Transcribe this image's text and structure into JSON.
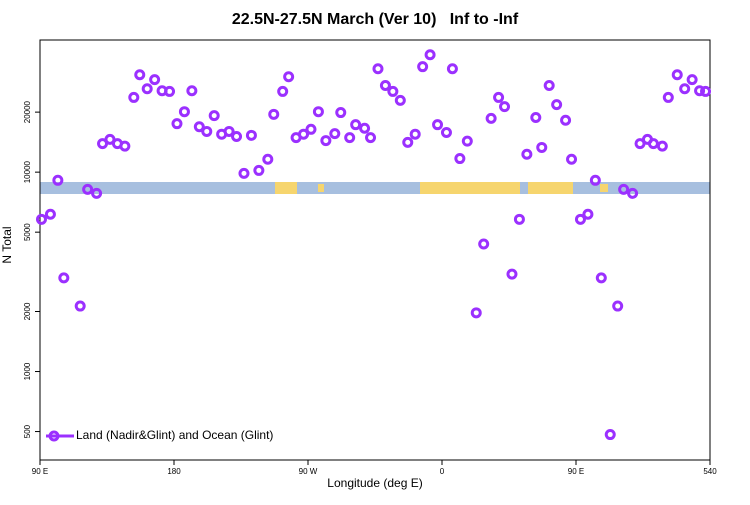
{
  "chart_data": {
    "type": "scatter",
    "title": "22.5N-27.5N March (Ver 10)   Inf to -Inf",
    "xlabel": "Longitude (deg E)",
    "ylabel": "N Total",
    "xlim": [
      90,
      540
    ],
    "xticks": [
      {
        "value": 90,
        "label": "90 E"
      },
      180,
      {
        "value": 270,
        "label": "90 W"
      },
      {
        "value": 360,
        "label": "0"
      },
      {
        "value": 450,
        "label": "90 E"
      },
      540
    ],
    "ylim": [
      360,
      46000
    ],
    "yticks": [
      500,
      1000,
      2000,
      5000,
      10000,
      20000
    ],
    "yscale": "log",
    "legend": "lower left",
    "series": [
      {
        "name": "Land (Nadir&Glint) and Ocean (Glint)",
        "color": "#9b30ff",
        "x": [
          91,
          97,
          102,
          106,
          117,
          122,
          128,
          132,
          137,
          142,
          147,
          153,
          157,
          162,
          167,
          172,
          177,
          182,
          187,
          192,
          197,
          202,
          207,
          212,
          217,
          222,
          227,
          232,
          237,
          243,
          247,
          253,
          257,
          262,
          267,
          272,
          277,
          282,
          288,
          292,
          298,
          302,
          308,
          312,
          317,
          322,
          327,
          332,
          337,
          342,
          347,
          352,
          357,
          363,
          367,
          372,
          377,
          383,
          388,
          393,
          398,
          402,
          407,
          412,
          417,
          423,
          427,
          432,
          437,
          443,
          447,
          453,
          458,
          463,
          467,
          473,
          478,
          482,
          488,
          493,
          498,
          502,
          508,
          512,
          518,
          523,
          528,
          533,
          537
        ],
        "values": [
          5800,
          6150,
          9100,
          2950,
          2130,
          8200,
          7830,
          13900,
          14600,
          13900,
          13500,
          23700,
          30800,
          26200,
          29100,
          25600,
          25400,
          17500,
          20100,
          25600,
          16900,
          16000,
          19200,
          15500,
          16000,
          15100,
          9860,
          15300,
          10200,
          11600,
          19500,
          25400,
          30100,
          14900,
          15500,
          16400,
          20100,
          14400,
          15600,
          19900,
          14900,
          17300,
          16600,
          14900,
          33000,
          27200,
          25400,
          22900,
          14100,
          15500,
          33800,
          38800,
          17300,
          15800,
          33000,
          11700,
          14300,
          1970,
          4360,
          18600,
          23700,
          21300,
          3080,
          5800,
          12300,
          18800,
          13300,
          27200,
          21800,
          18200,
          11600,
          5800,
          6150,
          9100,
          2950,
          483,
          2130,
          8200,
          7830,
          13900,
          14600,
          13900,
          13500,
          23700,
          30800,
          26200,
          29100,
          25600,
          25400
        ]
      }
    ]
  }
}
